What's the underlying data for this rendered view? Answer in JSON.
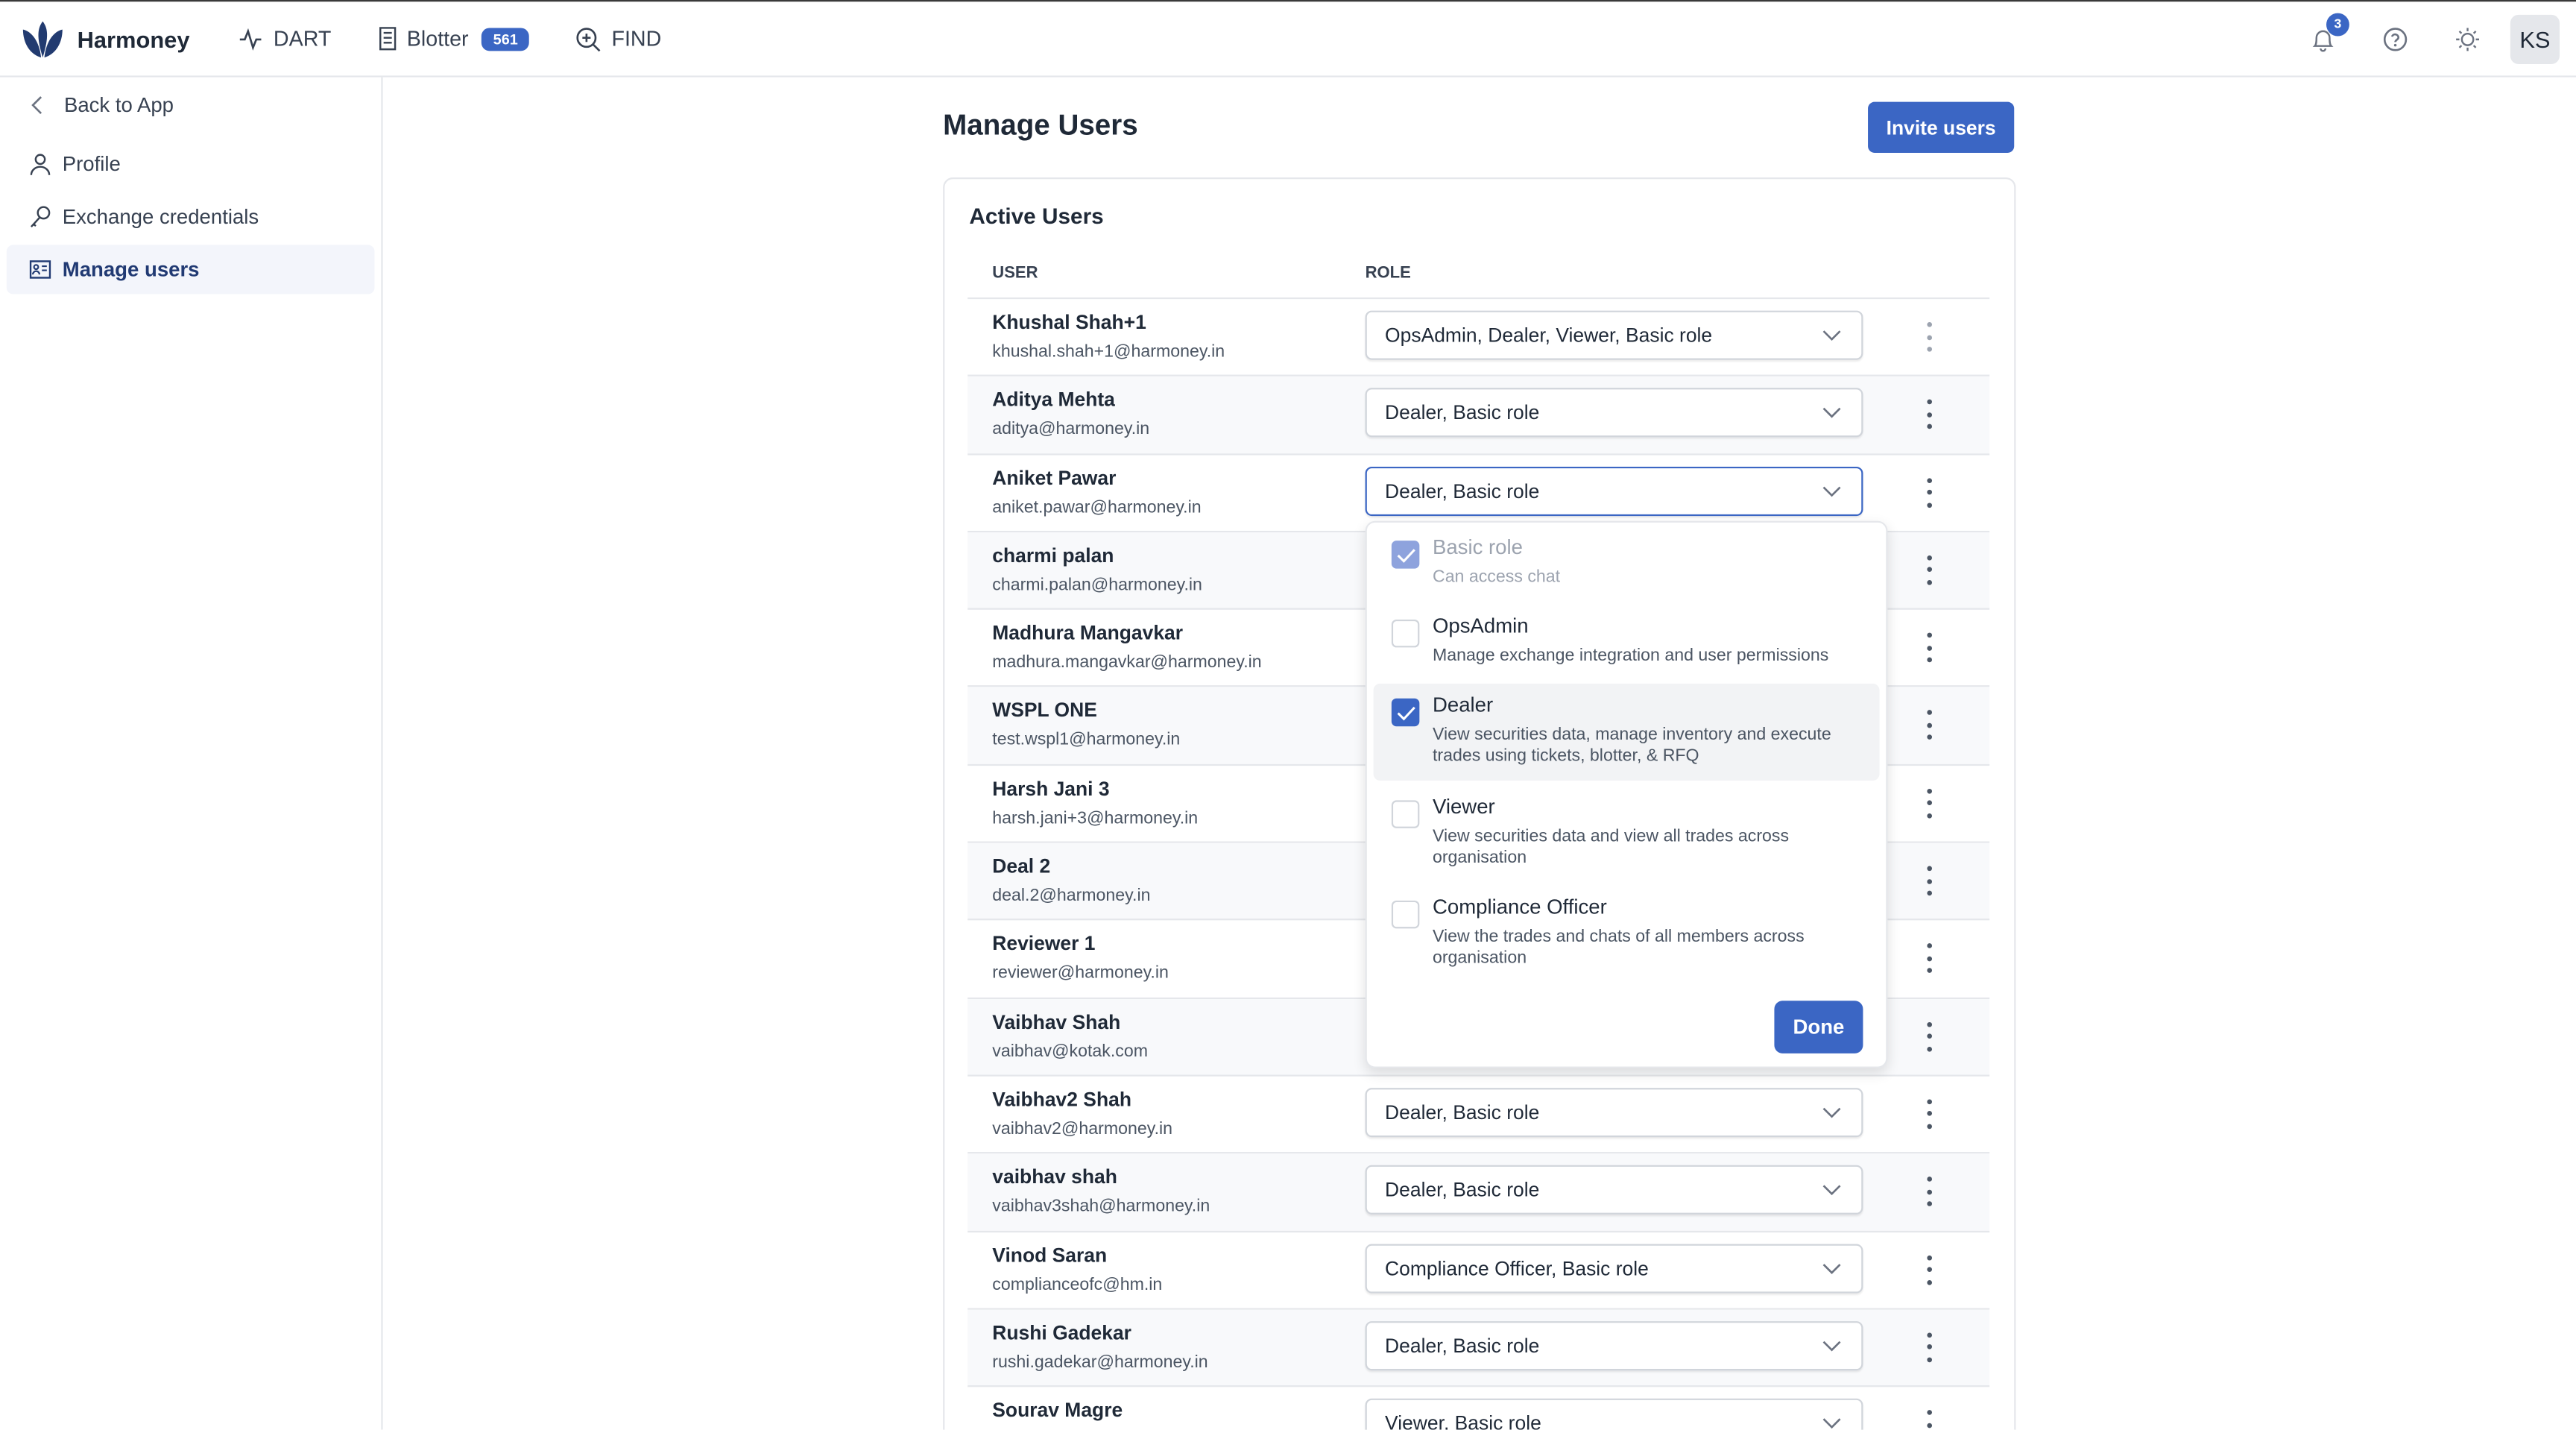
{
  "header": {
    "brand": "Harmoney",
    "nav": [
      {
        "label": "DART",
        "icon": "activity-icon"
      },
      {
        "label": "Blotter",
        "icon": "receipt-icon",
        "badge": "561"
      },
      {
        "label": "FIND",
        "icon": "zoom-in-icon"
      }
    ],
    "notifications_count": "3",
    "avatar_initials": "KS"
  },
  "sidebar": {
    "back": "Back to App",
    "items": [
      {
        "label": "Profile",
        "icon": "user-icon"
      },
      {
        "label": "Exchange credentials",
        "icon": "key-icon"
      },
      {
        "label": "Manage users",
        "icon": "id-card-icon",
        "active": true
      }
    ]
  },
  "page": {
    "title": "Manage Users",
    "invite_label": "Invite users"
  },
  "card": {
    "title": "Active Users",
    "columns": {
      "user": "USER",
      "role": "ROLE"
    }
  },
  "users": [
    {
      "name": "Khushal Shah+1",
      "email": "khushal.shah+1@harmoney.in",
      "role": "OpsAdmin, Dealer, Viewer, Basic role"
    },
    {
      "name": "Aditya Mehta",
      "email": "aditya@harmoney.in",
      "role": "Dealer, Basic role"
    },
    {
      "name": "Aniket Pawar",
      "email": "aniket.pawar@harmoney.in",
      "role": "Dealer, Basic role"
    },
    {
      "name": "charmi palan",
      "email": "charmi.palan@harmoney.in",
      "role": ""
    },
    {
      "name": "Madhura Mangavkar",
      "email": "madhura.mangavkar@harmoney.in",
      "role": ""
    },
    {
      "name": "WSPL ONE",
      "email": "test.wspl1@harmoney.in",
      "role": ""
    },
    {
      "name": "Harsh Jani 3",
      "email": "harsh.jani+3@harmoney.in",
      "role": ""
    },
    {
      "name": "Deal 2",
      "email": "deal.2@harmoney.in",
      "role": ""
    },
    {
      "name": "Reviewer 1",
      "email": "reviewer@harmoney.in",
      "role": ""
    },
    {
      "name": "Vaibhav Shah",
      "email": "vaibhav@kotak.com",
      "role": ""
    },
    {
      "name": "Vaibhav2 Shah",
      "email": "vaibhav2@harmoney.in",
      "role": "Dealer, Basic role"
    },
    {
      "name": "vaibhav shah",
      "email": "vaibhav3shah@harmoney.in",
      "role": "Dealer, Basic role"
    },
    {
      "name": "Vinod Saran",
      "email": "complianceofc@hm.in",
      "role": "Compliance Officer, Basic role"
    },
    {
      "name": "Rushi Gadekar",
      "email": "rushi.gadekar@harmoney.in",
      "role": "Dealer, Basic role"
    },
    {
      "name": "Sourav Magre",
      "email": "",
      "role": "Viewer, Basic role"
    }
  ],
  "role_dropdown": {
    "options": [
      {
        "label": "Basic role",
        "description": "Can access chat",
        "checked": true,
        "disabled": true
      },
      {
        "label": "OpsAdmin",
        "description": "Manage exchange integration and user permissions",
        "checked": false
      },
      {
        "label": "Dealer",
        "description": "View securities data, manage inventory and execute trades using tickets, blotter, & RFQ",
        "checked": true
      },
      {
        "label": "Viewer",
        "description": "View securities data and view all trades across organisation",
        "checked": false
      },
      {
        "label": "Compliance Officer",
        "description": "View the trades and chats of all members across organisation",
        "checked": false
      }
    ],
    "done_label": "Done"
  },
  "colors": {
    "accent": "#3b66c4",
    "brand_dark": "#213a73"
  }
}
